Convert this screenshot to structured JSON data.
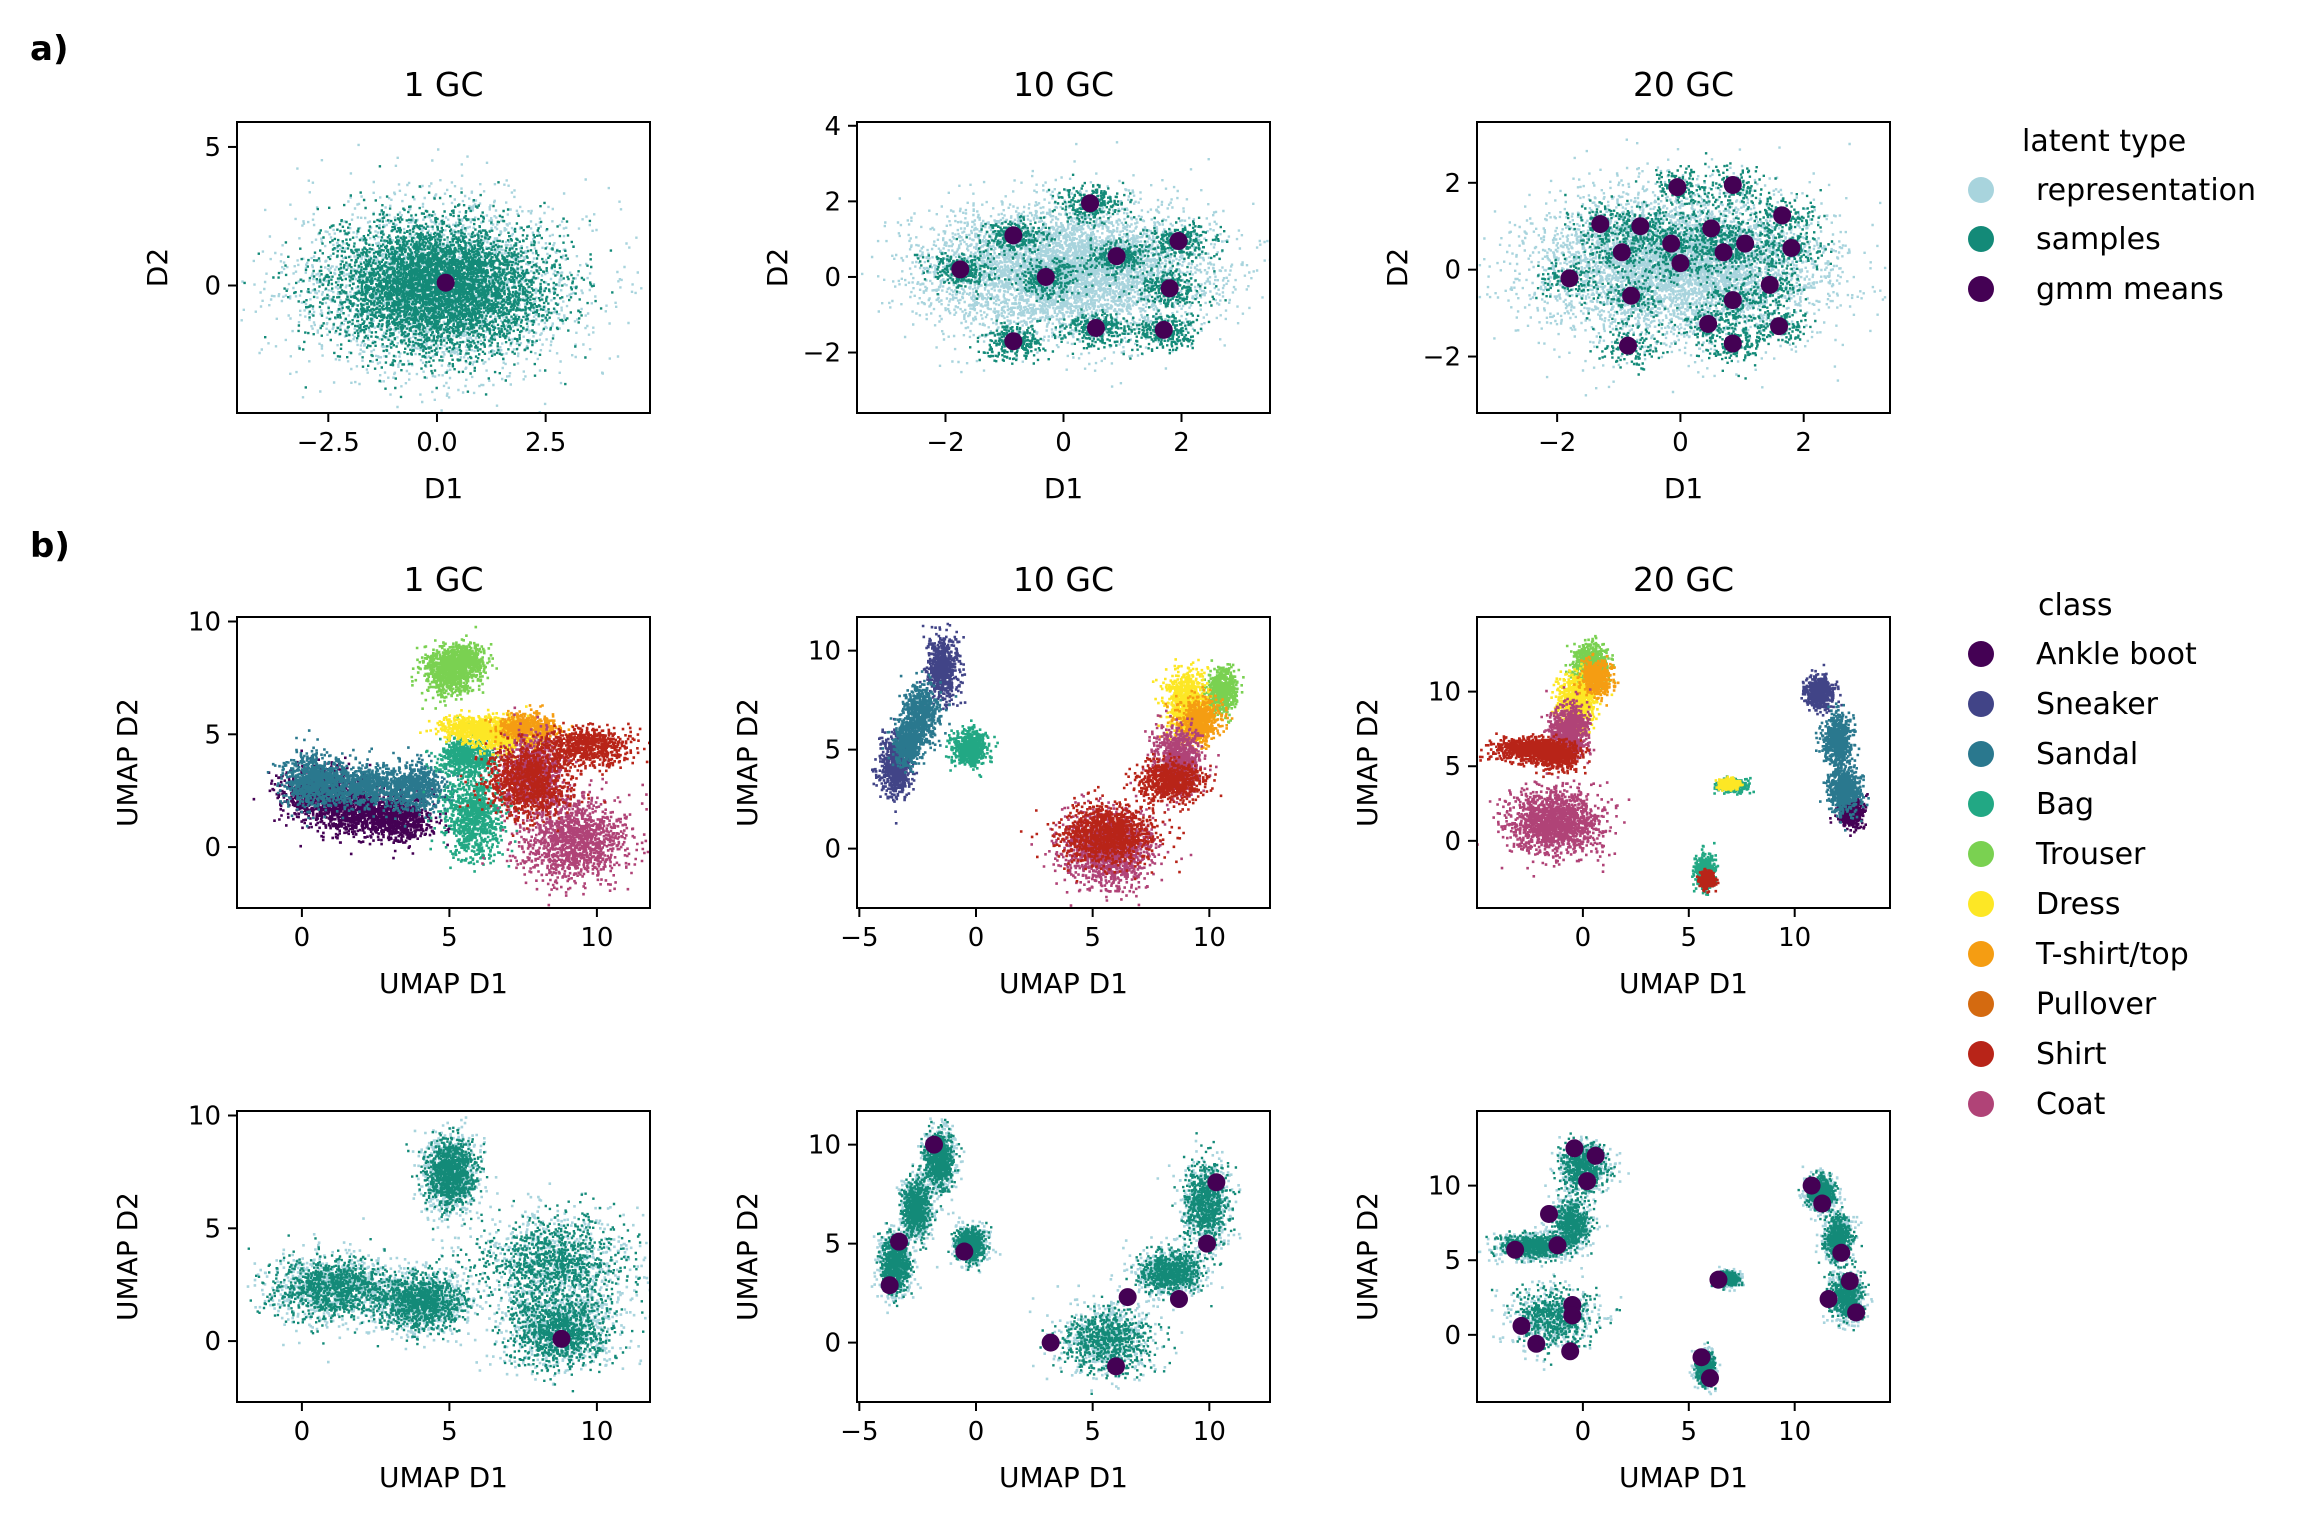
{
  "panel_labels": {
    "a": "a)",
    "b": "b)"
  },
  "colors": {
    "representation": "#a8d4dd",
    "samples": "#138a78",
    "gmm_means": "#440154",
    "classes": [
      "#440154",
      "#414487",
      "#2a788e",
      "#22a884",
      "#7ad151",
      "#fde725",
      "#f59d12",
      "#d46a10",
      "#b82418",
      "#b04377"
    ]
  },
  "legend_latent": {
    "title": "latent type",
    "items": [
      "representation",
      "samples",
      "gmm means"
    ]
  },
  "legend_class": {
    "title": "class",
    "items": [
      "Ankle boot",
      "Sneaker",
      "Sandal",
      "Bag",
      "Trouser",
      "Dress",
      "T-shirt/top",
      "Pullover",
      "Shirt",
      "Coat"
    ]
  },
  "chart_data": [
    {
      "id": "a1",
      "type": "scatter",
      "title": "1 GC",
      "xlabel": "D1",
      "ylabel": "D2",
      "xlim": [
        -4.6,
        4.9
      ],
      "ylim": [
        -4.6,
        5.9
      ],
      "xticks": [
        -2.5,
        0.0,
        2.5
      ],
      "xticklabels": [
        "−2.5",
        "0.0",
        "2.5"
      ],
      "yticks": [
        0,
        5
      ],
      "yticklabels": [
        "0",
        "5"
      ],
      "clusters": [
        [
          0.0,
          0.0,
          1.35,
          1.25
        ]
      ],
      "gmm_means": [
        [
          0.2,
          0.1
        ]
      ]
    },
    {
      "id": "a10",
      "type": "scatter",
      "title": "10 GC",
      "xlabel": "D1",
      "ylabel": "D2",
      "xlim": [
        -3.5,
        3.5
      ],
      "ylim": [
        -3.6,
        4.1
      ],
      "xticks": [
        -2,
        0,
        2
      ],
      "xticklabels": [
        "−2",
        "0",
        "2"
      ],
      "yticks": [
        -2,
        0,
        2,
        4
      ],
      "yticklabels": [
        "−2",
        "0",
        "2",
        "4"
      ],
      "clusters": [
        [
          0.0,
          0.2,
          1.9,
          1.35
        ]
      ],
      "gmm_means": [
        [
          0.45,
          1.95
        ],
        [
          -0.85,
          1.1
        ],
        [
          1.95,
          0.95
        ],
        [
          0.9,
          0.55
        ],
        [
          -1.75,
          0.2
        ],
        [
          -0.3,
          0.0
        ],
        [
          1.8,
          -0.3
        ],
        [
          -0.85,
          -1.7
        ],
        [
          0.55,
          -1.35
        ],
        [
          1.7,
          -1.4
        ]
      ]
    },
    {
      "id": "a20",
      "type": "scatter",
      "title": "20 GC",
      "xlabel": "D1",
      "ylabel": "D2",
      "xlim": [
        -3.3,
        3.4
      ],
      "ylim": [
        -3.3,
        3.4
      ],
      "xticks": [
        -2,
        0,
        2
      ],
      "xticklabels": [
        "−2",
        "0",
        "2"
      ],
      "yticks": [
        -2,
        0,
        2
      ],
      "yticklabels": [
        "−2",
        "0",
        "2"
      ],
      "clusters": [
        [
          0.0,
          0.1,
          1.85,
          1.35
        ]
      ],
      "gmm_means": [
        [
          -0.05,
          1.9
        ],
        [
          0.85,
          1.95
        ],
        [
          -1.3,
          1.05
        ],
        [
          -0.65,
          1.0
        ],
        [
          1.65,
          1.25
        ],
        [
          0.5,
          0.95
        ],
        [
          -0.15,
          0.6
        ],
        [
          1.05,
          0.6
        ],
        [
          -1.8,
          -0.2
        ],
        [
          -0.95,
          0.4
        ],
        [
          0.0,
          0.15
        ],
        [
          0.7,
          0.4
        ],
        [
          1.8,
          0.5
        ],
        [
          -0.8,
          -0.6
        ],
        [
          1.45,
          -0.35
        ],
        [
          0.85,
          -0.7
        ],
        [
          0.45,
          -1.25
        ],
        [
          1.6,
          -1.3
        ],
        [
          -0.85,
          -1.75
        ],
        [
          0.85,
          -1.7
        ]
      ]
    },
    {
      "id": "b1",
      "type": "scatter",
      "title": "1 GC",
      "xlabel": "UMAP D1",
      "ylabel": "UMAP D2",
      "xlim": [
        -2.2,
        11.8
      ],
      "ylim": [
        -2.7,
        10.2
      ],
      "xticks": [
        0,
        5,
        10
      ],
      "xticklabels": [
        "0",
        "5",
        "10"
      ],
      "yticks": [
        0,
        5,
        10
      ],
      "yticklabels": [
        "0",
        "5",
        "10"
      ],
      "class_clusters": [
        [
          0.6,
          2.4,
          1.3,
          1.1,
          0
        ],
        [
          1.8,
          1.6,
          1.3,
          0.9,
          0
        ],
        [
          3.3,
          1.3,
          1.0,
          0.9,
          0
        ],
        [
          0.3,
          3.0,
          0.9,
          1.1,
          2
        ],
        [
          1.9,
          2.8,
          1.6,
          0.9,
          2
        ],
        [
          3.8,
          2.7,
          0.9,
          0.9,
          2
        ],
        [
          5.8,
          1.5,
          0.9,
          1.8,
          3
        ],
        [
          5.5,
          4.1,
          0.8,
          0.7,
          3
        ],
        [
          4.9,
          7.8,
          0.8,
          1.0,
          4
        ],
        [
          5.4,
          8.3,
          0.7,
          0.7,
          4
        ],
        [
          5.8,
          5.3,
          1.0,
          0.5,
          5
        ],
        [
          6.9,
          5.0,
          1.0,
          0.7,
          5
        ],
        [
          7.6,
          5.3,
          0.9,
          0.6,
          6
        ],
        [
          7.6,
          3.0,
          1.3,
          1.4,
          8
        ],
        [
          9.6,
          4.5,
          1.4,
          0.8,
          8
        ],
        [
          9.2,
          0.4,
          1.6,
          1.7,
          9
        ],
        [
          7.8,
          3.3,
          1.0,
          1.5,
          9
        ]
      ]
    },
    {
      "id": "b10",
      "type": "scatter",
      "title": "10 GC",
      "xlabel": "UMAP D1",
      "ylabel": "UMAP D2",
      "xlim": [
        -5.1,
        12.6
      ],
      "ylim": [
        -3.0,
        11.7
      ],
      "xticks": [
        -5,
        0,
        5,
        10
      ],
      "xticklabels": [
        "−5",
        "0",
        "5",
        "10"
      ],
      "yticks": [
        0,
        5,
        10
      ],
      "yticklabels": [
        "0",
        "5",
        "10"
      ],
      "class_clusters": [
        [
          -1.5,
          9.2,
          0.6,
          1.5,
          1
        ],
        [
          -2.4,
          6.8,
          0.7,
          1.3,
          2
        ],
        [
          -3.5,
          4.2,
          0.6,
          1.4,
          1
        ],
        [
          -0.3,
          5.2,
          0.7,
          0.8,
          3
        ],
        [
          -3.0,
          5.3,
          0.5,
          0.9,
          2
        ],
        [
          10.5,
          8.0,
          0.6,
          1.0,
          4
        ],
        [
          9.0,
          7.5,
          0.8,
          1.5,
          5
        ],
        [
          9.5,
          6.5,
          0.8,
          1.0,
          6
        ],
        [
          8.3,
          3.5,
          1.2,
          0.9,
          8
        ],
        [
          5.6,
          0.8,
          1.8,
          1.3,
          8
        ],
        [
          5.6,
          0.0,
          1.7,
          1.7,
          9
        ],
        [
          8.6,
          4.6,
          0.9,
          1.5,
          9
        ]
      ]
    },
    {
      "id": "b20",
      "type": "scatter",
      "title": "20 GC",
      "xlabel": "UMAP D1",
      "ylabel": "UMAP D2",
      "xlim": [
        -5.0,
        14.5
      ],
      "ylim": [
        -4.5,
        15.0
      ],
      "xticks": [
        0,
        5,
        10
      ],
      "xticklabels": [
        "0",
        "5",
        "10"
      ],
      "yticks": [
        0,
        5,
        10
      ],
      "yticklabels": [
        "0",
        "5",
        "10"
      ],
      "class_clusters": [
        [
          0.3,
          11.8,
          0.8,
          1.3,
          4
        ],
        [
          -0.3,
          9.5,
          0.8,
          1.6,
          5
        ],
        [
          0.6,
          11.0,
          0.6,
          1.0,
          6
        ],
        [
          -2.6,
          6.2,
          1.6,
          0.7,
          8
        ],
        [
          -1.3,
          5.8,
          0.9,
          0.8,
          8
        ],
        [
          -0.7,
          7.5,
          0.8,
          1.5,
          9
        ],
        [
          -1.4,
          1.3,
          1.9,
          1.9,
          9
        ],
        [
          7.0,
          3.8,
          0.6,
          0.4,
          3
        ],
        [
          6.8,
          3.9,
          0.4,
          0.3,
          5
        ],
        [
          5.7,
          -2.0,
          0.4,
          1.0,
          3
        ],
        [
          5.8,
          -2.5,
          0.3,
          0.5,
          8
        ],
        [
          11.1,
          10.0,
          0.6,
          1.0,
          1
        ],
        [
          12.0,
          6.8,
          0.6,
          1.5,
          2
        ],
        [
          12.3,
          3.5,
          0.7,
          1.3,
          2
        ],
        [
          12.6,
          2.0,
          0.5,
          0.8,
          0
        ]
      ]
    },
    {
      "id": "c1",
      "type": "scatter",
      "xlabel": "UMAP D1",
      "ylabel": "UMAP D2",
      "xlim": [
        -2.2,
        11.8
      ],
      "ylim": [
        -2.7,
        10.2
      ],
      "xticks": [
        0,
        5,
        10
      ],
      "xticklabels": [
        "0",
        "5",
        "10"
      ],
      "yticks": [
        0,
        5,
        10
      ],
      "yticklabels": [
        "0",
        "5",
        "10"
      ],
      "clusters": [
        [
          1.0,
          2.4,
          1.9,
          1.3
        ],
        [
          4.0,
          1.8,
          1.4,
          1.2
        ],
        [
          5.0,
          7.5,
          0.8,
          1.5
        ],
        [
          8.5,
          3.5,
          2.4,
          2.0
        ],
        [
          8.7,
          0.6,
          1.7,
          1.6
        ]
      ],
      "gmm_means": [
        [
          8.8,
          0.1
        ]
      ]
    },
    {
      "id": "c10",
      "type": "scatter",
      "xlabel": "UMAP D1",
      "ylabel": "UMAP D2",
      "xlim": [
        -5.1,
        12.6
      ],
      "ylim": [
        -3.0,
        11.7
      ],
      "xticks": [
        -5,
        0,
        5,
        10
      ],
      "xticklabels": [
        "−5",
        "0",
        "5",
        "10"
      ],
      "yticks": [
        0,
        5,
        10
      ],
      "yticklabels": [
        "0",
        "5",
        "10"
      ],
      "clusters": [
        [
          -1.6,
          9.3,
          0.6,
          1.4
        ],
        [
          -2.6,
          6.8,
          0.6,
          1.4
        ],
        [
          -3.5,
          4.0,
          0.6,
          1.4
        ],
        [
          -0.3,
          5.0,
          0.6,
          0.8
        ],
        [
          5.6,
          0.2,
          1.8,
          1.6
        ],
        [
          8.3,
          3.6,
          1.3,
          1.0
        ],
        [
          9.8,
          7.0,
          0.9,
          2.0
        ]
      ],
      "gmm_means": [
        [
          -1.8,
          10.0
        ],
        [
          -3.3,
          5.1
        ],
        [
          -3.7,
          2.9
        ],
        [
          -0.5,
          4.6
        ],
        [
          10.3,
          8.1
        ],
        [
          9.9,
          5.0
        ],
        [
          6.5,
          2.3
        ],
        [
          8.7,
          2.2
        ],
        [
          3.2,
          0.0
        ],
        [
          6.0,
          -1.2
        ]
      ]
    },
    {
      "id": "c20",
      "type": "scatter",
      "xlabel": "UMAP D1",
      "ylabel": "UMAP D2",
      "xlim": [
        -5.0,
        14.5
      ],
      "ylim": [
        -4.5,
        15.0
      ],
      "xticks": [
        0,
        5,
        10
      ],
      "xticklabels": [
        "0",
        "5",
        "10"
      ],
      "yticks": [
        0,
        5,
        10
      ],
      "yticklabels": [
        "0",
        "5",
        "10"
      ],
      "clusters": [
        [
          0.0,
          11.3,
          1.0,
          1.6
        ],
        [
          -0.6,
          7.5,
          0.8,
          1.6
        ],
        [
          -2.4,
          6.0,
          1.5,
          0.8
        ],
        [
          -1.4,
          1.2,
          1.8,
          1.9
        ],
        [
          6.8,
          3.8,
          0.5,
          0.4
        ],
        [
          5.7,
          -2.2,
          0.4,
          1.0
        ],
        [
          11.2,
          9.6,
          0.6,
          1.0
        ],
        [
          12.0,
          6.5,
          0.6,
          1.5
        ],
        [
          12.4,
          2.6,
          0.7,
          1.5
        ]
      ],
      "gmm_means": [
        [
          -0.4,
          12.5
        ],
        [
          0.6,
          12.0
        ],
        [
          0.2,
          10.3
        ],
        [
          -1.6,
          8.1
        ],
        [
          -1.2,
          6.0
        ],
        [
          -3.2,
          5.7
        ],
        [
          -0.5,
          2.0
        ],
        [
          -0.5,
          1.3
        ],
        [
          -2.9,
          0.6
        ],
        [
          -2.2,
          -0.6
        ],
        [
          -0.6,
          -1.1
        ],
        [
          6.4,
          3.7
        ],
        [
          5.6,
          -1.5
        ],
        [
          6.0,
          -2.9
        ],
        [
          10.8,
          10.0
        ],
        [
          11.3,
          8.8
        ],
        [
          12.2,
          5.5
        ],
        [
          12.6,
          3.6
        ],
        [
          11.6,
          2.4
        ],
        [
          12.9,
          1.5
        ]
      ]
    }
  ]
}
